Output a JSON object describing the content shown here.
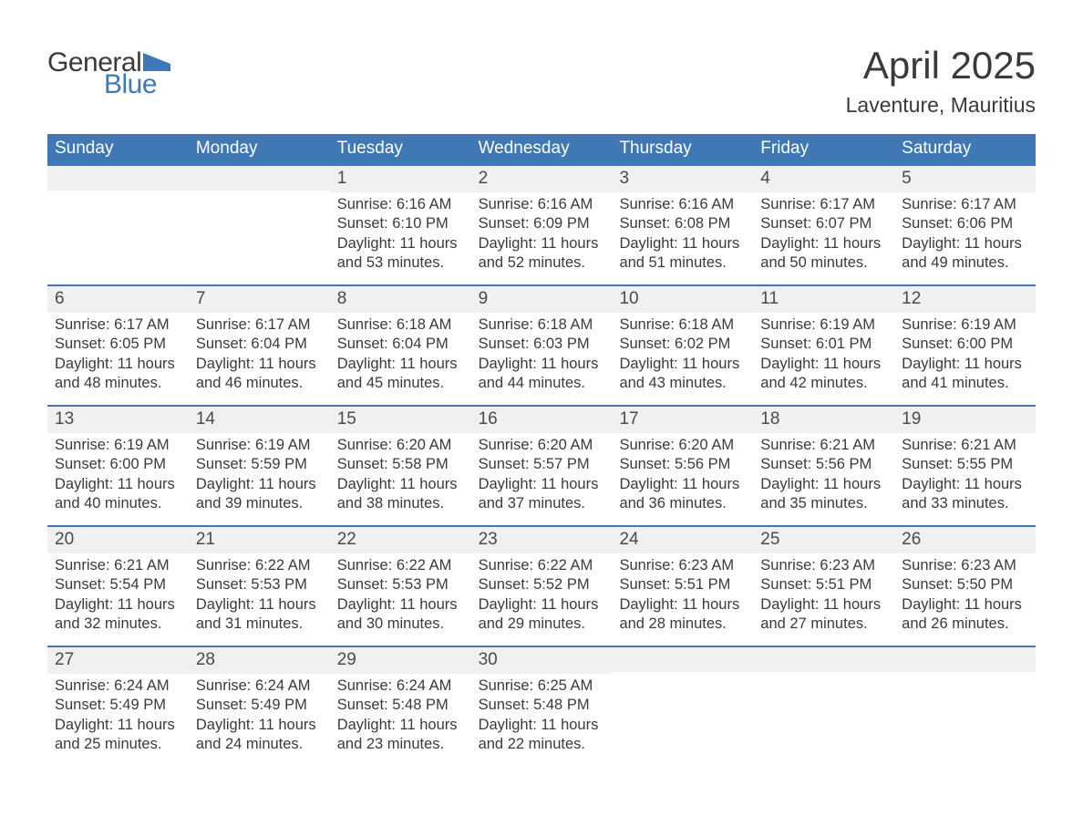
{
  "logo": {
    "text_general": "General",
    "text_blue": "Blue",
    "flag_color": "#3f78b5"
  },
  "title": {
    "month": "April 2025",
    "location": "Laventure, Mauritius"
  },
  "colors": {
    "header_bg": "#3f78b5",
    "header_text": "#ffffff",
    "daynum_bg": "#f0f0f0",
    "body_text": "#3a3a3a",
    "week_divider": "#3f78b5",
    "page_bg": "#ffffff"
  },
  "fonts": {
    "title_size_pt": 32,
    "location_size_pt": 17,
    "header_size_pt": 14,
    "body_size_pt": 12
  },
  "day_headers": [
    "Sunday",
    "Monday",
    "Tuesday",
    "Wednesday",
    "Thursday",
    "Friday",
    "Saturday"
  ],
  "weeks": [
    [
      {
        "n": "",
        "sr": "",
        "ss": "",
        "dl": ""
      },
      {
        "n": "",
        "sr": "",
        "ss": "",
        "dl": ""
      },
      {
        "n": "1",
        "sr": "Sunrise: 6:16 AM",
        "ss": "Sunset: 6:10 PM",
        "dl": "Daylight: 11 hours and 53 minutes."
      },
      {
        "n": "2",
        "sr": "Sunrise: 6:16 AM",
        "ss": "Sunset: 6:09 PM",
        "dl": "Daylight: 11 hours and 52 minutes."
      },
      {
        "n": "3",
        "sr": "Sunrise: 6:16 AM",
        "ss": "Sunset: 6:08 PM",
        "dl": "Daylight: 11 hours and 51 minutes."
      },
      {
        "n": "4",
        "sr": "Sunrise: 6:17 AM",
        "ss": "Sunset: 6:07 PM",
        "dl": "Daylight: 11 hours and 50 minutes."
      },
      {
        "n": "5",
        "sr": "Sunrise: 6:17 AM",
        "ss": "Sunset: 6:06 PM",
        "dl": "Daylight: 11 hours and 49 minutes."
      }
    ],
    [
      {
        "n": "6",
        "sr": "Sunrise: 6:17 AM",
        "ss": "Sunset: 6:05 PM",
        "dl": "Daylight: 11 hours and 48 minutes."
      },
      {
        "n": "7",
        "sr": "Sunrise: 6:17 AM",
        "ss": "Sunset: 6:04 PM",
        "dl": "Daylight: 11 hours and 46 minutes."
      },
      {
        "n": "8",
        "sr": "Sunrise: 6:18 AM",
        "ss": "Sunset: 6:04 PM",
        "dl": "Daylight: 11 hours and 45 minutes."
      },
      {
        "n": "9",
        "sr": "Sunrise: 6:18 AM",
        "ss": "Sunset: 6:03 PM",
        "dl": "Daylight: 11 hours and 44 minutes."
      },
      {
        "n": "10",
        "sr": "Sunrise: 6:18 AM",
        "ss": "Sunset: 6:02 PM",
        "dl": "Daylight: 11 hours and 43 minutes."
      },
      {
        "n": "11",
        "sr": "Sunrise: 6:19 AM",
        "ss": "Sunset: 6:01 PM",
        "dl": "Daylight: 11 hours and 42 minutes."
      },
      {
        "n": "12",
        "sr": "Sunrise: 6:19 AM",
        "ss": "Sunset: 6:00 PM",
        "dl": "Daylight: 11 hours and 41 minutes."
      }
    ],
    [
      {
        "n": "13",
        "sr": "Sunrise: 6:19 AM",
        "ss": "Sunset: 6:00 PM",
        "dl": "Daylight: 11 hours and 40 minutes."
      },
      {
        "n": "14",
        "sr": "Sunrise: 6:19 AM",
        "ss": "Sunset: 5:59 PM",
        "dl": "Daylight: 11 hours and 39 minutes."
      },
      {
        "n": "15",
        "sr": "Sunrise: 6:20 AM",
        "ss": "Sunset: 5:58 PM",
        "dl": "Daylight: 11 hours and 38 minutes."
      },
      {
        "n": "16",
        "sr": "Sunrise: 6:20 AM",
        "ss": "Sunset: 5:57 PM",
        "dl": "Daylight: 11 hours and 37 minutes."
      },
      {
        "n": "17",
        "sr": "Sunrise: 6:20 AM",
        "ss": "Sunset: 5:56 PM",
        "dl": "Daylight: 11 hours and 36 minutes."
      },
      {
        "n": "18",
        "sr": "Sunrise: 6:21 AM",
        "ss": "Sunset: 5:56 PM",
        "dl": "Daylight: 11 hours and 35 minutes."
      },
      {
        "n": "19",
        "sr": "Sunrise: 6:21 AM",
        "ss": "Sunset: 5:55 PM",
        "dl": "Daylight: 11 hours and 33 minutes."
      }
    ],
    [
      {
        "n": "20",
        "sr": "Sunrise: 6:21 AM",
        "ss": "Sunset: 5:54 PM",
        "dl": "Daylight: 11 hours and 32 minutes."
      },
      {
        "n": "21",
        "sr": "Sunrise: 6:22 AM",
        "ss": "Sunset: 5:53 PM",
        "dl": "Daylight: 11 hours and 31 minutes."
      },
      {
        "n": "22",
        "sr": "Sunrise: 6:22 AM",
        "ss": "Sunset: 5:53 PM",
        "dl": "Daylight: 11 hours and 30 minutes."
      },
      {
        "n": "23",
        "sr": "Sunrise: 6:22 AM",
        "ss": "Sunset: 5:52 PM",
        "dl": "Daylight: 11 hours and 29 minutes."
      },
      {
        "n": "24",
        "sr": "Sunrise: 6:23 AM",
        "ss": "Sunset: 5:51 PM",
        "dl": "Daylight: 11 hours and 28 minutes."
      },
      {
        "n": "25",
        "sr": "Sunrise: 6:23 AM",
        "ss": "Sunset: 5:51 PM",
        "dl": "Daylight: 11 hours and 27 minutes."
      },
      {
        "n": "26",
        "sr": "Sunrise: 6:23 AM",
        "ss": "Sunset: 5:50 PM",
        "dl": "Daylight: 11 hours and 26 minutes."
      }
    ],
    [
      {
        "n": "27",
        "sr": "Sunrise: 6:24 AM",
        "ss": "Sunset: 5:49 PM",
        "dl": "Daylight: 11 hours and 25 minutes."
      },
      {
        "n": "28",
        "sr": "Sunrise: 6:24 AM",
        "ss": "Sunset: 5:49 PM",
        "dl": "Daylight: 11 hours and 24 minutes."
      },
      {
        "n": "29",
        "sr": "Sunrise: 6:24 AM",
        "ss": "Sunset: 5:48 PM",
        "dl": "Daylight: 11 hours and 23 minutes."
      },
      {
        "n": "30",
        "sr": "Sunrise: 6:25 AM",
        "ss": "Sunset: 5:48 PM",
        "dl": "Daylight: 11 hours and 22 minutes."
      },
      {
        "n": "",
        "sr": "",
        "ss": "",
        "dl": ""
      },
      {
        "n": "",
        "sr": "",
        "ss": "",
        "dl": ""
      },
      {
        "n": "",
        "sr": "",
        "ss": "",
        "dl": ""
      }
    ]
  ]
}
